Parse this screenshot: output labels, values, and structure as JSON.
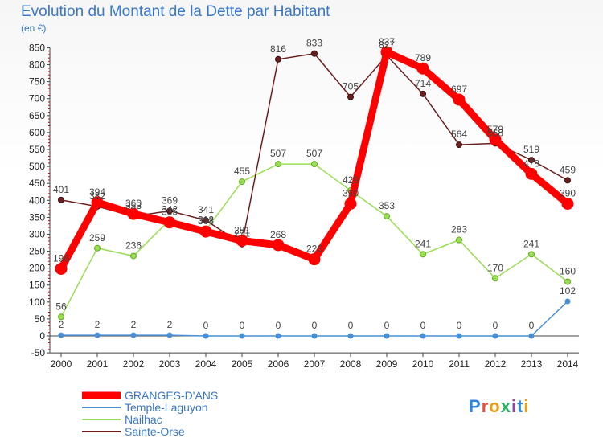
{
  "chart_data": {
    "type": "line",
    "title": "Evolution du Montant de la Dette par Habitant",
    "subtitle": "(en €)",
    "x": [
      "2000",
      "2001",
      "2002",
      "2003",
      "2004",
      "2005",
      "2006",
      "2007",
      "2008",
      "2009",
      "2010",
      "2011",
      "2012",
      "2013",
      "2014"
    ],
    "ylim": [
      -50,
      850
    ],
    "yticks": [
      -50,
      0,
      50,
      100,
      150,
      200,
      250,
      300,
      350,
      400,
      450,
      500,
      550,
      600,
      650,
      700,
      750,
      800,
      850
    ],
    "grid": false,
    "legend_position": "bottom-left",
    "series": [
      {
        "name": "GRANGES-D'ANS",
        "color": "#ff0000",
        "values": [
          198,
          394,
          360,
          335,
          308,
          281,
          268,
          226,
          390,
          837,
          789,
          697,
          579,
          478,
          390
        ]
      },
      {
        "name": "Temple-Laguyon",
        "color": "#4a8fd4",
        "values": [
          2,
          2,
          2,
          2,
          0,
          0,
          0,
          0,
          0,
          0,
          0,
          0,
          0,
          0,
          102
        ]
      },
      {
        "name": "Nailhac",
        "color": "#99dd55",
        "values": [
          56,
          259,
          236,
          342,
          312,
          455,
          507,
          507,
          429,
          353,
          241,
          283,
          170,
          241,
          160
        ]
      },
      {
        "name": "Sainte-Orse",
        "color": "#6b1f1f",
        "values": [
          401,
          382,
          353,
          369,
          341,
          271,
          816,
          833,
          705,
          827,
          714,
          564,
          568,
          519,
          459
        ]
      }
    ]
  },
  "logo": {
    "letters": [
      "P",
      "r",
      "o",
      "x",
      "i",
      "t",
      "i"
    ],
    "colors": [
      "#2e86de",
      "#e84c3d",
      "#f39c12",
      "#27ae60",
      "#8e44ad",
      "#2e86de",
      "#f39c12"
    ]
  }
}
